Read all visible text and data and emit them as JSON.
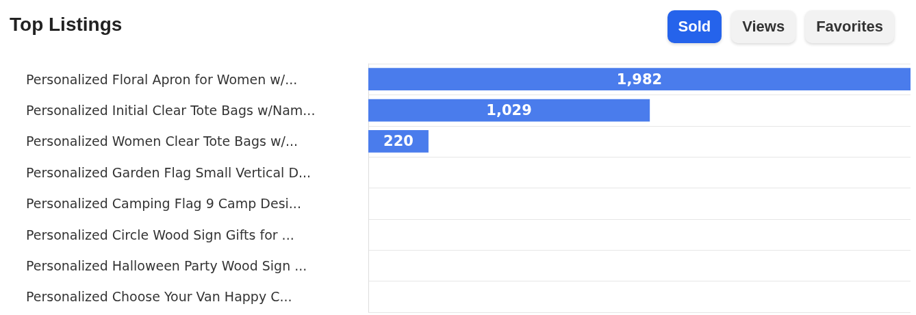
{
  "chart_data": {
    "type": "bar",
    "orientation": "horizontal",
    "title": "Top Listings",
    "annotations": [
      "Sold",
      "Views",
      "Favorites"
    ],
    "categories": [
      "Personalized Floral Apron for Women w/...",
      "Personalized Initial Clear Tote Bags w/Nam...",
      "Personalized Women Clear Tote Bags w/...",
      "Personalized Garden Flag Small Vertical D...",
      "Personalized Camping Flag 9 Camp Desi...",
      "Personalized Circle Wood Sign Gifts for ...",
      "Personalized Halloween Party Wood Sign ...",
      "Personalized Choose Your Van Happy C..."
    ],
    "values": [
      1982,
      1029,
      220,
      null,
      null,
      null,
      null,
      null
    ],
    "value_labels": [
      "1,982",
      "1,029",
      "220",
      null,
      null,
      null,
      null,
      null
    ],
    "color": "#4a7cec",
    "grid": "y"
  }
}
